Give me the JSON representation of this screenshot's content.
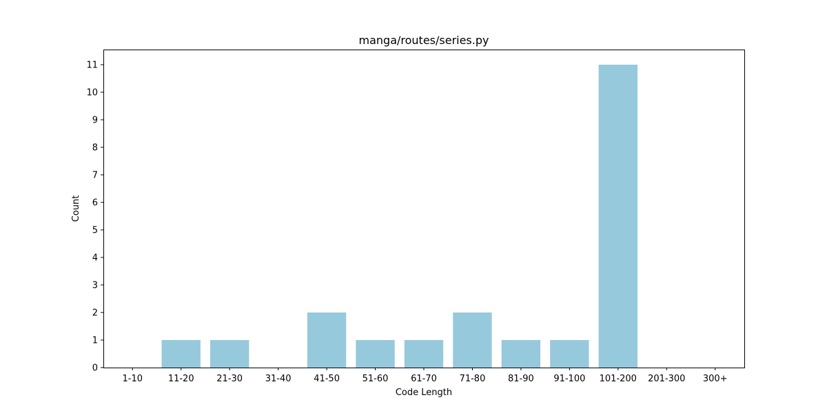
{
  "chart_data": {
    "type": "bar",
    "title": "manga/routes/series.py",
    "xlabel": "Code Length",
    "ylabel": "Count",
    "categories": [
      "1-10",
      "11-20",
      "21-30",
      "31-40",
      "41-50",
      "51-60",
      "61-70",
      "71-80",
      "81-90",
      "91-100",
      "101-200",
      "201-300",
      "300+"
    ],
    "values": [
      0,
      1,
      1,
      0,
      2,
      1,
      1,
      2,
      1,
      1,
      11,
      0,
      0
    ],
    "ylim": [
      0,
      11.55
    ],
    "yticks": [
      0,
      1,
      2,
      3,
      4,
      5,
      6,
      7,
      8,
      9,
      10,
      11
    ],
    "grid": false,
    "bar_color": "#96c9dc"
  }
}
